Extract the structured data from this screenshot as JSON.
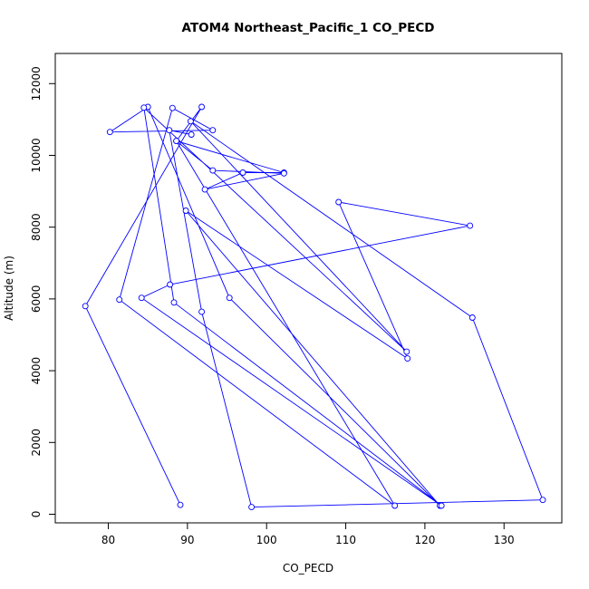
{
  "chart_data": {
    "type": "line",
    "title": "ATOM4 Northeast_Pacific_1 CO_PECD",
    "xlabel": "CO_PECD",
    "ylabel": "Altitude (m)",
    "xlim": [
      73.3,
      137.3
    ],
    "ylim": [
      -240,
      12840
    ],
    "x_ticks": [
      80,
      90,
      100,
      110,
      120,
      130
    ],
    "y_ticks": [
      0,
      2000,
      4000,
      6000,
      8000,
      10000,
      12000
    ],
    "series_color": "#0000ff",
    "marker": "open-circle",
    "grid": false,
    "x": [
      89.1,
      77.1,
      91.8,
      88.6,
      102.2,
      97.0,
      92.2,
      102.2,
      93.2,
      88.6,
      116.2,
      81.4,
      88.1,
      93.2,
      80.2,
      85.0,
      95.3,
      121.9,
      89.8,
      117.8,
      109.1,
      125.7,
      87.8,
      84.2,
      122.1,
      88.3,
      84.5,
      117.7,
      90.4,
      126.0,
      134.9,
      98.1,
      91.8,
      87.7,
      90.5
    ],
    "y": [
      260,
      5800,
      11350,
      10400,
      9520,
      9520,
      9050,
      9500,
      9580,
      10400,
      240,
      5980,
      11320,
      10700,
      10650,
      11350,
      6030,
      240,
      8460,
      4340,
      8700,
      8040,
      6400,
      6030,
      240,
      5900,
      11330,
      4530,
      10950,
      5480,
      400,
      200,
      5640,
      10700,
      10580
    ]
  }
}
